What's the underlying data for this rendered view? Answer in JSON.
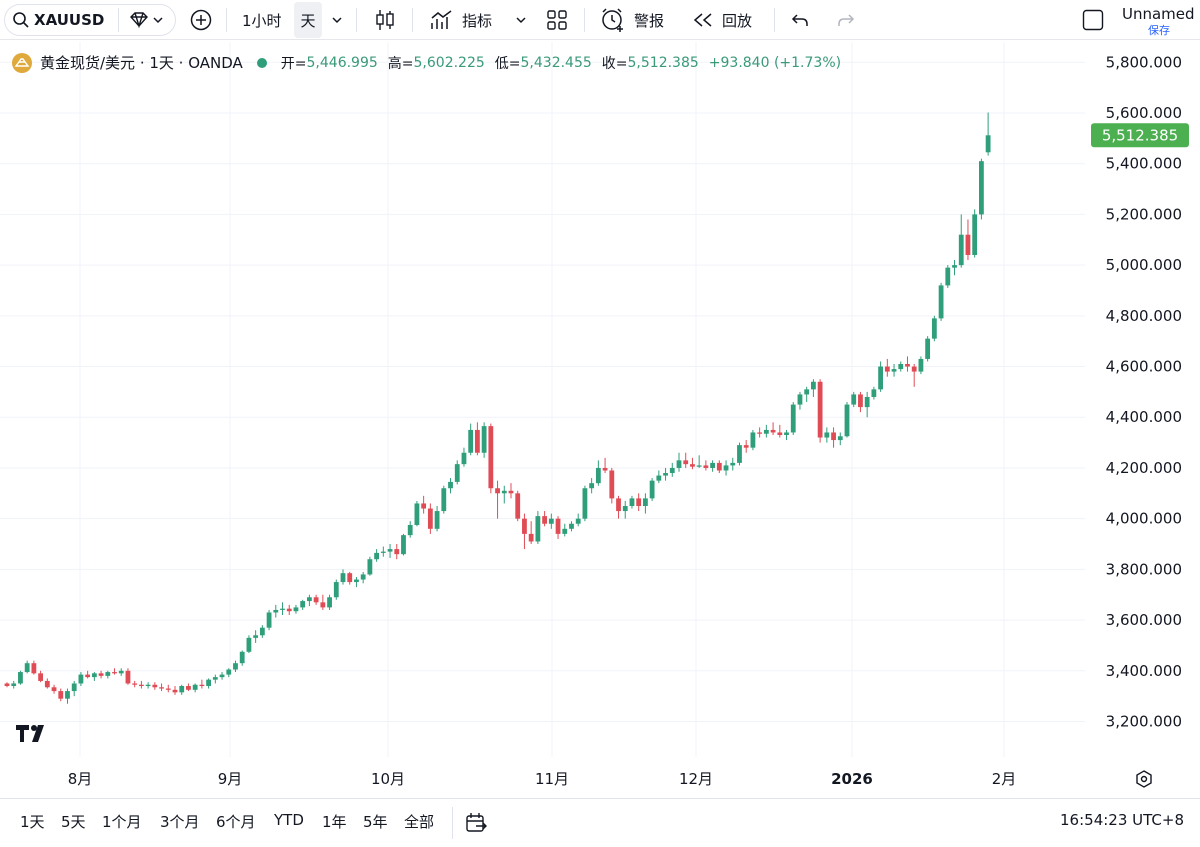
{
  "toolbar": {
    "symbol": "XAUUSD",
    "interval_1h": "1小时",
    "interval_day": "天",
    "indicators": "指标",
    "alert": "警报",
    "replay": "回放",
    "layout_name": "Unnamed",
    "save": "保存"
  },
  "legend": {
    "title": "黄金现货/美元 · 1天 · OANDA",
    "open_label": "开=",
    "open": "5,446.995",
    "high_label": "高=",
    "high": "5,602.225",
    "low_label": "低=",
    "low": "5,432.455",
    "close_label": "收=",
    "close": "5,512.385",
    "change": "+93.840 (+1.73%)"
  },
  "price_badge": "5,512.385",
  "bottom": {
    "ranges": [
      "1天",
      "5天",
      "1个月",
      "3个月",
      "6个月",
      "YTD",
      "1年",
      "5年",
      "全部"
    ],
    "clock": "16:54:23 UTC+8"
  },
  "colors": {
    "up": "#2f9e7a",
    "down": "#e04c56",
    "badge": "#4caf50"
  },
  "chart_data": {
    "type": "candlestick",
    "y_ticks": [
      "5,800.000",
      "5,600.000",
      "5,400.000",
      "5,200.000",
      "5,000.000",
      "4,800.000",
      "4,600.000",
      "4,400.000",
      "4,200.000",
      "4,000.000",
      "3,800.000",
      "3,600.000",
      "3,400.000",
      "3,200.000"
    ],
    "y_tick_values": [
      5800,
      5600,
      5400,
      5200,
      5000,
      4800,
      4600,
      4400,
      4200,
      4000,
      3800,
      3600,
      3400,
      3200
    ],
    "x_ticks": [
      "8月",
      "9月",
      "10月",
      "11月",
      "12月",
      "2026",
      "2月"
    ],
    "ylim": [
      3060,
      5880
    ],
    "candles": [
      [
        3350,
        3355,
        3335,
        3340
      ],
      [
        3340,
        3360,
        3330,
        3350
      ],
      [
        3350,
        3400,
        3345,
        3395
      ],
      [
        3395,
        3440,
        3390,
        3430
      ],
      [
        3430,
        3440,
        3385,
        3390
      ],
      [
        3390,
        3400,
        3355,
        3360
      ],
      [
        3360,
        3370,
        3330,
        3335
      ],
      [
        3335,
        3345,
        3310,
        3320
      ],
      [
        3320,
        3330,
        3280,
        3290
      ],
      [
        3290,
        3330,
        3270,
        3320
      ],
      [
        3320,
        3360,
        3300,
        3350
      ],
      [
        3350,
        3395,
        3340,
        3385
      ],
      [
        3385,
        3400,
        3370,
        3375
      ],
      [
        3375,
        3395,
        3360,
        3390
      ],
      [
        3390,
        3400,
        3370,
        3380
      ],
      [
        3380,
        3400,
        3370,
        3395
      ],
      [
        3395,
        3410,
        3385,
        3390
      ],
      [
        3390,
        3410,
        3380,
        3400
      ],
      [
        3400,
        3410,
        3345,
        3350
      ],
      [
        3350,
        3360,
        3335,
        3345
      ],
      [
        3345,
        3360,
        3330,
        3340
      ],
      [
        3340,
        3355,
        3330,
        3345
      ],
      [
        3345,
        3355,
        3325,
        3335
      ],
      [
        3335,
        3350,
        3320,
        3330
      ],
      [
        3330,
        3345,
        3315,
        3325
      ],
      [
        3325,
        3340,
        3305,
        3315
      ],
      [
        3315,
        3345,
        3305,
        3340
      ],
      [
        3340,
        3350,
        3320,
        3325
      ],
      [
        3325,
        3350,
        3315,
        3345
      ],
      [
        3345,
        3365,
        3330,
        3340
      ],
      [
        3340,
        3370,
        3330,
        3365
      ],
      [
        3365,
        3385,
        3350,
        3375
      ],
      [
        3375,
        3395,
        3365,
        3385
      ],
      [
        3385,
        3410,
        3375,
        3405
      ],
      [
        3405,
        3440,
        3395,
        3430
      ],
      [
        3430,
        3480,
        3420,
        3475
      ],
      [
        3475,
        3540,
        3470,
        3530
      ],
      [
        3530,
        3560,
        3510,
        3540
      ],
      [
        3540,
        3580,
        3530,
        3570
      ],
      [
        3570,
        3640,
        3560,
        3630
      ],
      [
        3630,
        3660,
        3610,
        3640
      ],
      [
        3640,
        3670,
        3620,
        3645
      ],
      [
        3645,
        3660,
        3620,
        3635
      ],
      [
        3635,
        3660,
        3625,
        3650
      ],
      [
        3650,
        3680,
        3640,
        3675
      ],
      [
        3675,
        3700,
        3655,
        3690
      ],
      [
        3690,
        3700,
        3660,
        3670
      ],
      [
        3670,
        3700,
        3640,
        3650
      ],
      [
        3650,
        3700,
        3640,
        3690
      ],
      [
        3690,
        3760,
        3680,
        3750
      ],
      [
        3750,
        3800,
        3740,
        3785
      ],
      [
        3785,
        3790,
        3740,
        3750
      ],
      [
        3750,
        3770,
        3730,
        3760
      ],
      [
        3760,
        3790,
        3745,
        3780
      ],
      [
        3780,
        3850,
        3775,
        3840
      ],
      [
        3840,
        3880,
        3830,
        3865
      ],
      [
        3865,
        3890,
        3850,
        3870
      ],
      [
        3870,
        3900,
        3845,
        3880
      ],
      [
        3880,
        3900,
        3840,
        3860
      ],
      [
        3860,
        3940,
        3855,
        3935
      ],
      [
        3935,
        3990,
        3925,
        3975
      ],
      [
        3975,
        4070,
        3970,
        4060
      ],
      [
        4060,
        4090,
        4020,
        4040
      ],
      [
        4040,
        4060,
        3940,
        3960
      ],
      [
        3960,
        4050,
        3950,
        4030
      ],
      [
        4030,
        4130,
        4020,
        4120
      ],
      [
        4120,
        4160,
        4100,
        4145
      ],
      [
        4145,
        4230,
        4135,
        4215
      ],
      [
        4215,
        4280,
        4205,
        4260
      ],
      [
        4260,
        4375,
        4250,
        4350
      ],
      [
        4350,
        4380,
        4250,
        4260
      ],
      [
        4260,
        4380,
        4240,
        4365
      ],
      [
        4365,
        4375,
        4100,
        4120
      ],
      [
        4120,
        4150,
        4000,
        4100
      ],
      [
        4100,
        4130,
        4060,
        4110
      ],
      [
        4110,
        4140,
        4080,
        4100
      ],
      [
        4100,
        4110,
        3990,
        4000
      ],
      [
        4000,
        4020,
        3880,
        3940
      ],
      [
        3940,
        3990,
        3900,
        3910
      ],
      [
        3910,
        4030,
        3900,
        4010
      ],
      [
        4010,
        4030,
        3970,
        3980
      ],
      [
        3980,
        4020,
        3960,
        4000
      ],
      [
        4000,
        4010,
        3920,
        3940
      ],
      [
        3940,
        3980,
        3930,
        3960
      ],
      [
        3960,
        3990,
        3950,
        3980
      ],
      [
        3980,
        4020,
        3970,
        4000
      ],
      [
        4000,
        4130,
        3990,
        4120
      ],
      [
        4120,
        4160,
        4100,
        4140
      ],
      [
        4140,
        4230,
        4130,
        4200
      ],
      [
        4200,
        4240,
        4180,
        4190
      ],
      [
        4190,
        4200,
        4060,
        4080
      ],
      [
        4080,
        4090,
        4000,
        4030
      ],
      [
        4030,
        4070,
        4000,
        4050
      ],
      [
        4050,
        4090,
        4040,
        4080
      ],
      [
        4080,
        4100,
        4030,
        4050
      ],
      [
        4050,
        4100,
        4020,
        4080
      ],
      [
        4080,
        4160,
        4070,
        4150
      ],
      [
        4150,
        4190,
        4140,
        4170
      ],
      [
        4170,
        4200,
        4150,
        4180
      ],
      [
        4180,
        4220,
        4165,
        4200
      ],
      [
        4200,
        4260,
        4185,
        4230
      ],
      [
        4230,
        4260,
        4200,
        4215
      ],
      [
        4215,
        4240,
        4195,
        4205
      ],
      [
        4205,
        4250,
        4200,
        4210
      ],
      [
        4210,
        4230,
        4190,
        4200
      ],
      [
        4200,
        4230,
        4185,
        4220
      ],
      [
        4220,
        4230,
        4180,
        4190
      ],
      [
        4190,
        4230,
        4170,
        4210
      ],
      [
        4210,
        4240,
        4190,
        4220
      ],
      [
        4220,
        4300,
        4210,
        4290
      ],
      [
        4290,
        4310,
        4260,
        4280
      ],
      [
        4280,
        4350,
        4270,
        4340
      ],
      [
        4340,
        4360,
        4320,
        4335
      ],
      [
        4335,
        4370,
        4320,
        4350
      ],
      [
        4350,
        4380,
        4330,
        4340
      ],
      [
        4340,
        4370,
        4320,
        4330
      ],
      [
        4330,
        4350,
        4310,
        4340
      ],
      [
        4340,
        4460,
        4330,
        4450
      ],
      [
        4450,
        4500,
        4430,
        4490
      ],
      [
        4490,
        4520,
        4460,
        4510
      ],
      [
        4510,
        4550,
        4480,
        4540
      ],
      [
        4540,
        4550,
        4300,
        4320
      ],
      [
        4320,
        4360,
        4300,
        4340
      ],
      [
        4340,
        4360,
        4280,
        4310
      ],
      [
        4310,
        4340,
        4290,
        4325
      ],
      [
        4325,
        4460,
        4320,
        4450
      ],
      [
        4450,
        4500,
        4440,
        4490
      ],
      [
        4490,
        4500,
        4420,
        4440
      ],
      [
        4440,
        4500,
        4400,
        4480
      ],
      [
        4480,
        4520,
        4470,
        4510
      ],
      [
        4510,
        4620,
        4500,
        4600
      ],
      [
        4600,
        4630,
        4560,
        4580
      ],
      [
        4580,
        4610,
        4560,
        4590
      ],
      [
        4590,
        4620,
        4580,
        4610
      ],
      [
        4610,
        4640,
        4580,
        4600
      ],
      [
        4600,
        4610,
        4520,
        4580
      ],
      [
        4580,
        4640,
        4570,
        4630
      ],
      [
        4630,
        4720,
        4620,
        4710
      ],
      [
        4710,
        4800,
        4700,
        4790
      ],
      [
        4790,
        4930,
        4780,
        4920
      ],
      [
        4920,
        5000,
        4910,
        4990
      ],
      [
        4990,
        5020,
        4960,
        5000
      ],
      [
        5000,
        5200,
        4990,
        5120
      ],
      [
        5120,
        5180,
        5020,
        5040
      ],
      [
        5040,
        5220,
        5030,
        5200
      ],
      [
        5200,
        5420,
        5180,
        5410
      ],
      [
        5445,
        5602,
        5432,
        5512
      ]
    ]
  }
}
